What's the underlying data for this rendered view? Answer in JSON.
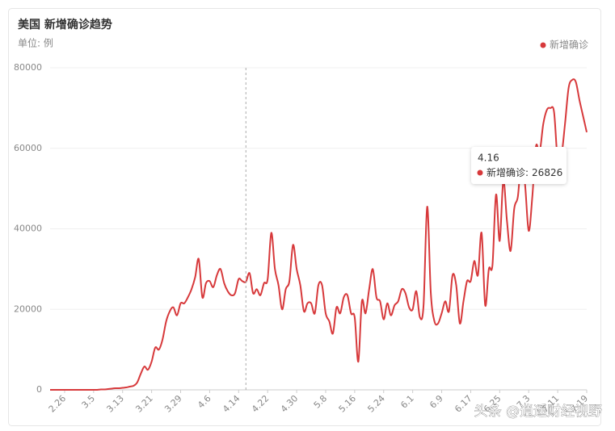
{
  "chart_data": {
    "type": "line",
    "title": "美国 新增确诊趋势",
    "subtitle": "单位: 例",
    "categories": [
      null,
      null,
      null,
      null,
      "2.26",
      null,
      null,
      null,
      null,
      null,
      null,
      null,
      "3.5",
      null,
      null,
      null,
      null,
      null,
      null,
      null,
      "3.13",
      null,
      null,
      null,
      null,
      null,
      null,
      null,
      "3.21",
      null,
      null,
      null,
      null,
      null,
      null,
      null,
      "3.29",
      null,
      null,
      null,
      null,
      null,
      null,
      null,
      "4.6",
      null,
      null,
      null,
      null,
      null,
      null,
      null,
      "4.14",
      null,
      null,
      null,
      null,
      null,
      null,
      null,
      "4.22",
      null,
      null,
      null,
      null,
      null,
      null,
      null,
      "4.30",
      null,
      null,
      null,
      null,
      null,
      null,
      null,
      "5.8",
      null,
      null,
      null,
      null,
      null,
      null,
      null,
      "5.16",
      null,
      null,
      null,
      null,
      null,
      null,
      null,
      "5.24",
      null,
      null,
      null,
      null,
      null,
      null,
      null,
      "6.1",
      null,
      null,
      null,
      null,
      null,
      null,
      null,
      "6.9",
      null,
      null,
      null,
      null,
      null,
      null,
      null,
      "6.17",
      null,
      null,
      null,
      null,
      null,
      null,
      null,
      "6.25",
      null,
      null,
      null,
      null,
      null,
      null,
      null,
      "7.3",
      null,
      null,
      null,
      null,
      null,
      null,
      null,
      "7.11",
      null,
      null,
      null,
      null,
      null,
      null,
      null,
      "7.19"
    ],
    "series": [
      {
        "name": "新增确诊",
        "color": "#d7393b",
        "values": [
          0,
          0,
          0,
          0,
          0,
          0,
          0,
          0,
          0,
          0,
          0,
          0,
          0,
          0,
          100,
          100,
          200,
          300,
          400,
          400,
          500,
          600,
          800,
          1000,
          1800,
          4000,
          5800,
          5000,
          7000,
          10500,
          10000,
          12500,
          17000,
          19500,
          20500,
          18500,
          21500,
          21500,
          23000,
          25000,
          28000,
          32500,
          23000,
          26500,
          27000,
          25500,
          28500,
          30000,
          26500,
          24500,
          23500,
          24000,
          27500,
          27000,
          26826,
          29000,
          24000,
          25000,
          23500,
          26500,
          27500,
          39000,
          30000,
          26000,
          20000,
          25000,
          27000,
          36000,
          30000,
          26000,
          19500,
          21500,
          21500,
          19000,
          26000,
          26000,
          19000,
          17000,
          14000,
          20500,
          19000,
          23000,
          23500,
          19000,
          18000,
          7000,
          22000,
          19000,
          25000,
          30000,
          23000,
          22000,
          17500,
          21500,
          18500,
          21000,
          22000,
          25000,
          24000,
          20500,
          20000,
          24500,
          18000,
          21000,
          45500,
          24000,
          17000,
          16500,
          19000,
          22000,
          19500,
          28500,
          26000,
          16500,
          22000,
          27000,
          27000,
          32000,
          28500,
          39000,
          21000,
          30000,
          31000,
          48500,
          37000,
          52000,
          42000,
          34500,
          45000,
          48000,
          57000,
          51000,
          39500,
          48000,
          60500,
          59000,
          66000,
          69500,
          70000,
          69000,
          57000,
          58000,
          66000,
          75000,
          77000,
          76500,
          72000,
          68000,
          64000
        ]
      }
    ],
    "ylim": [
      0,
      80000
    ],
    "yticks": [
      0,
      20000,
      40000,
      60000,
      80000
    ],
    "grid": true,
    "legend": "top-right",
    "tooltip": {
      "x": "4.16",
      "label": "新增确诊:",
      "value": 26826
    },
    "watermark": "头条 @逍遥财经视野"
  }
}
